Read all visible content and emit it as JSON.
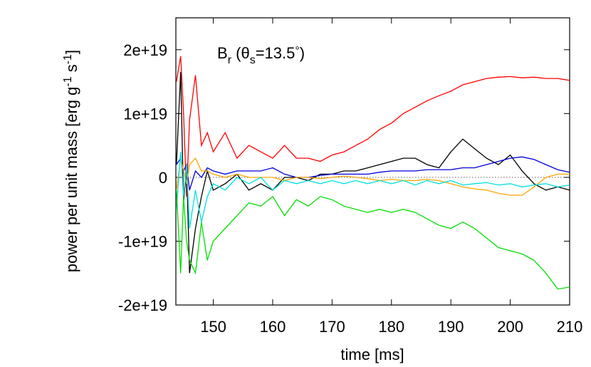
{
  "chart_data": {
    "type": "line",
    "annotation": [
      "B",
      "r",
      " (θ",
      "s",
      "=13.5",
      "°",
      ")"
    ],
    "xlabel": "time [ms]",
    "ylabel": [
      "power per unit mass [erg g",
      "-1",
      " s",
      "-1",
      "]"
    ],
    "xlim": [
      143.7,
      210
    ],
    "xticks": [
      150,
      160,
      170,
      180,
      190,
      200,
      210
    ],
    "ylim": [
      -2e+19,
      2.5e+19
    ],
    "yticks": [
      {
        "value": -2e+19,
        "label": "-2e+19"
      },
      {
        "value": -1e+19,
        "label": "-1e+19"
      },
      0,
      {
        "value": 1e+19,
        "label": "1e+19"
      },
      {
        "value": 2e+19,
        "label": "2e+19"
      }
    ],
    "reference_line": 0,
    "x": [
      143.8,
      144.5,
      145,
      145.5,
      146,
      147,
      148,
      149,
      150,
      152,
      154,
      156,
      158,
      160,
      162,
      164,
      166,
      168,
      170,
      172,
      174,
      176,
      178,
      180,
      182,
      184,
      186,
      188,
      190,
      192,
      194,
      196,
      198,
      200,
      202,
      204,
      206,
      208,
      210
    ],
    "series": [
      {
        "color": "#ff0000",
        "values": [
          1.5e+19,
          1.9e+19,
          1e+19,
          -3e+18,
          9e+18,
          1.6e+19,
          5e+18,
          7e+18,
          4e+18,
          7e+18,
          3e+18,
          5e+18,
          4e+18,
          3e+18,
          5e+18,
          3e+18,
          3e+18,
          2.5e+18,
          3.5e+18,
          4e+18,
          5e+18,
          6e+18,
          7.5e+18,
          8.5e+18,
          1e+19,
          1.1e+19,
          1.2e+19,
          1.28e+19,
          1.35e+19,
          1.45e+19,
          1.5e+19,
          1.55e+19,
          1.57e+19,
          1.58e+19,
          1.56e+19,
          1.57e+19,
          1.55e+19,
          1.55e+19,
          1.52e+19
        ]
      },
      {
        "color": "#000000",
        "values": [
          2e+18,
          1.65e+19,
          -4e+18,
          2e+18,
          -1.5e+19,
          -8e+18,
          -3e+18,
          1e+18,
          -2e+18,
          -1e+18,
          5e+17,
          -2e+18,
          -1e+18,
          -2e+18,
          0,
          0,
          -5e+17,
          5e+17,
          5e+17,
          1e+18,
          1e+18,
          1.5e+18,
          2e+18,
          2.5e+18,
          3e+18,
          3e+18,
          2e+18,
          1.5e+18,
          4e+18,
          6e+18,
          4.5e+18,
          3e+18,
          2e+18,
          3.5e+18,
          1e+18,
          -1e+18,
          -2e+18,
          -1.5e+18,
          -2e+18
        ]
      },
      {
        "color": "#0000dd",
        "values": [
          2e+18,
          3e+18,
          1e+18,
          2e+18,
          -2e+18,
          1e+18,
          0,
          1.5e+18,
          1e+18,
          5e+17,
          1e+18,
          1e+18,
          1e+18,
          1.5e+18,
          5e+17,
          0,
          0,
          3e+17,
          5e+17,
          5e+17,
          5e+17,
          5e+17,
          8e+17,
          1e+18,
          1e+18,
          1e+18,
          1.2e+18,
          1.2e+18,
          1.2e+18,
          1.5e+18,
          1.5e+18,
          2e+18,
          2.5e+18,
          3e+18,
          3.2e+18,
          2.8e+18,
          2e+18,
          1.2e+18,
          8e+17
        ]
      },
      {
        "color": "#ffa500",
        "values": [
          -2e+18,
          3e+18,
          1e+18,
          -1e+18,
          2e+18,
          3e+18,
          1e+18,
          1e+18,
          5e+17,
          0,
          5e+17,
          0,
          0,
          0,
          -5e+17,
          0,
          0,
          -2e+17,
          0,
          2e+17,
          0,
          -2e+17,
          -5e+17,
          -3e+17,
          -5e+17,
          -5e+17,
          -3e+17,
          -5e+17,
          -1e+18,
          -1.5e+18,
          -1.8e+18,
          -2e+18,
          -2.5e+18,
          -2.8e+18,
          -2.8e+18,
          -1.5e+18,
          0,
          5e+17,
          5e+17
        ]
      },
      {
        "color": "#00e0e0",
        "values": [
          -5e+18,
          4e+18,
          -3e+18,
          2e+18,
          -8e+18,
          -2e+18,
          -7e+18,
          -3e+18,
          -1e+18,
          -2e+18,
          0,
          -1e+18,
          0,
          -2e+18,
          -5e+17,
          -1e+18,
          -5e+17,
          -1e+18,
          -5e+17,
          -1e+18,
          -5e+17,
          -1e+18,
          -5e+17,
          -1e+18,
          -5e+17,
          -1.2e+18,
          -5e+17,
          -1e+18,
          -5e+17,
          -1.2e+18,
          -1e+18,
          -8e+17,
          -1.2e+18,
          -1e+18,
          -1.5e+18,
          -1.2e+18,
          -1e+18,
          -1.5e+18,
          -1.2e+18
        ]
      },
      {
        "color": "#00dd00",
        "values": [
          -2e+18,
          -1.5e+19,
          -3e+18,
          -1e+19,
          -1.3e+19,
          -1.5e+19,
          -7e+18,
          -1.3e+19,
          -1e+19,
          -8e+18,
          -6e+18,
          -4e+18,
          -4.5e+18,
          -3e+18,
          -6e+18,
          -3.5e+18,
          -4.5e+18,
          -3e+18,
          -3.5e+18,
          -4.5e+18,
          -5e+18,
          -5.5e+18,
          -5e+18,
          -5.5e+18,
          -5e+18,
          -5.5e+18,
          -6.5e+18,
          -7.5e+18,
          -8e+18,
          -7e+18,
          -8e+18,
          -9.5e+18,
          -1.1e+19,
          -1.15e+19,
          -1.2e+19,
          -1.3e+19,
          -1.5e+19,
          -1.75e+19,
          -1.72e+19
        ]
      }
    ]
  }
}
